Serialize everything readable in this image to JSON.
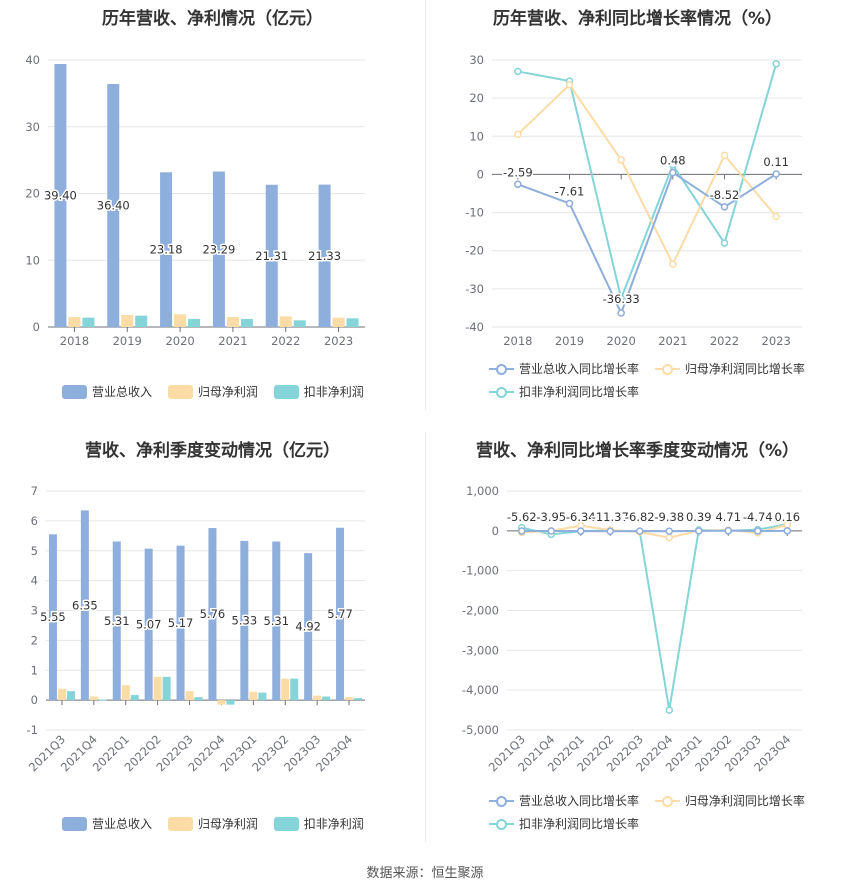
{
  "charts": [
    {
      "title": "历年营收、净利情况（亿元）",
      "legend": [
        "营业总收入",
        "归母净利润",
        "扣非净利润"
      ]
    },
    {
      "title": "历年营收、净利同比增长率情况（%）",
      "legend": [
        "营业总收入同比增长率",
        "归母净利润同比增长率",
        "扣非净利润同比增长率"
      ]
    },
    {
      "title": "营收、净利季度变动情况（亿元）",
      "legend": [
        "营业总收入",
        "归母净利润",
        "扣非净利润"
      ]
    },
    {
      "title": "营收、净利同比增长率季度变动情况（%）",
      "legend": [
        "营业总收入同比增长率",
        "归母净利润同比增长率",
        "扣非净利润同比增长率"
      ]
    }
  ],
  "colors": {
    "revenue": "#8eaedc",
    "net_profit": "#fcdca6",
    "deducted": "#84d4d8",
    "grid": "#e6e6e6",
    "axis": "#6e7079"
  },
  "chart_data": [
    {
      "type": "bar",
      "title": "历年营收、净利情况（亿元）",
      "categories": [
        "2018",
        "2019",
        "2020",
        "2021",
        "2022",
        "2023"
      ],
      "series": [
        {
          "name": "营业总收入",
          "values": [
            39.4,
            36.4,
            23.18,
            23.29,
            21.31,
            21.33
          ],
          "labels": [
            "39.40",
            "36.40",
            "23.18",
            "23.29",
            "21.31",
            "21.33"
          ]
        },
        {
          "name": "归母净利润",
          "values": [
            1.5,
            1.8,
            1.9,
            1.5,
            1.6,
            1.4
          ]
        },
        {
          "name": "扣非净利润",
          "values": [
            1.4,
            1.7,
            1.2,
            1.2,
            1.0,
            1.3
          ]
        }
      ],
      "yticks": [
        "0",
        "10",
        "20",
        "30",
        "40"
      ],
      "ylim": [
        0,
        40
      ],
      "legend_position": "bottom"
    },
    {
      "type": "line",
      "title": "历年营收、净利同比增长率情况（%）",
      "categories": [
        "2018",
        "2019",
        "2020",
        "2021",
        "2022",
        "2023"
      ],
      "series": [
        {
          "name": "营业总收入同比增长率",
          "values": [
            -2.59,
            -7.61,
            -36.33,
            0.48,
            -8.52,
            0.11
          ],
          "labels": [
            "-2.59",
            "-7.61",
            "-36.33",
            "0.48",
            "-8.52",
            "0.11"
          ]
        },
        {
          "name": "归母净利润同比增长率",
          "values": [
            10.5,
            23.5,
            3.8,
            -23.5,
            5.0,
            -11.0
          ]
        },
        {
          "name": "扣非净利润同比增长率",
          "values": [
            27.0,
            24.5,
            -32.5,
            2.5,
            -18.0,
            29.0
          ]
        }
      ],
      "yticks": [
        "-40",
        "-30",
        "-20",
        "-10",
        "0",
        "10",
        "20",
        "30"
      ],
      "ylim": [
        -40,
        30
      ],
      "legend_position": "bottom"
    },
    {
      "type": "bar",
      "title": "营收、净利季度变动情况（亿元）",
      "categories": [
        "2021Q3",
        "2021Q4",
        "2022Q1",
        "2022Q2",
        "2022Q3",
        "2022Q4",
        "2023Q1",
        "2023Q2",
        "2023Q3",
        "2023Q4"
      ],
      "series": [
        {
          "name": "营业总收入",
          "values": [
            5.55,
            6.35,
            5.31,
            5.07,
            5.17,
            5.76,
            5.33,
            5.31,
            4.92,
            5.77
          ],
          "labels": [
            "5.55",
            "6.35",
            "5.31",
            "5.07",
            "5.17",
            "5.76",
            "5.33",
            "5.31",
            "4.92",
            "5.77"
          ]
        },
        {
          "name": "归母净利润",
          "values": [
            0.38,
            0.12,
            0.5,
            0.78,
            0.3,
            -0.15,
            0.28,
            0.72,
            0.15,
            0.1
          ]
        },
        {
          "name": "扣非净利润",
          "values": [
            0.3,
            0.02,
            0.17,
            0.78,
            0.1,
            -0.15,
            0.25,
            0.72,
            0.12,
            0.07
          ]
        }
      ],
      "yticks": [
        "-1",
        "0",
        "1",
        "2",
        "3",
        "4",
        "5",
        "6",
        "7"
      ],
      "ylim": [
        -1,
        7
      ],
      "legend_position": "bottom"
    },
    {
      "type": "line",
      "title": "营收、净利同比增长率季度变动情况（%）",
      "categories": [
        "2021Q3",
        "2021Q4",
        "2022Q1",
        "2022Q2",
        "2022Q3",
        "2022Q4",
        "2023Q1",
        "2023Q2",
        "2023Q3",
        "2023Q4"
      ],
      "series": [
        {
          "name": "营业总收入同比增长率",
          "values": [
            -5.62,
            -3.95,
            -6.34,
            -11.37,
            -6.82,
            -9.38,
            0.39,
            4.71,
            -4.74,
            0.16
          ],
          "labels": [
            "-5.62",
            "-3.95",
            "-6.34",
            "-11.37",
            "-6.82",
            "-9.38",
            "0.39",
            "4.71",
            "-4.74",
            "0.16"
          ]
        },
        {
          "name": "归母净利润同比增长率",
          "values": [
            -40,
            0,
            130,
            20,
            -30,
            -170,
            0,
            20,
            -50,
            150
          ]
        },
        {
          "name": "扣非净利润同比增长率",
          "values": [
            80,
            -90,
            -10,
            10,
            -20,
            -4500,
            20,
            0,
            30,
            170
          ]
        }
      ],
      "yticks": [
        "-5,000",
        "-4,000",
        "-3,000",
        "-2,000",
        "-1,000",
        "0",
        "1,000"
      ],
      "ylim": [
        -5000,
        1000
      ],
      "legend_position": "bottom"
    }
  ],
  "footer": {
    "source": "数据来源：恒生聚源"
  }
}
